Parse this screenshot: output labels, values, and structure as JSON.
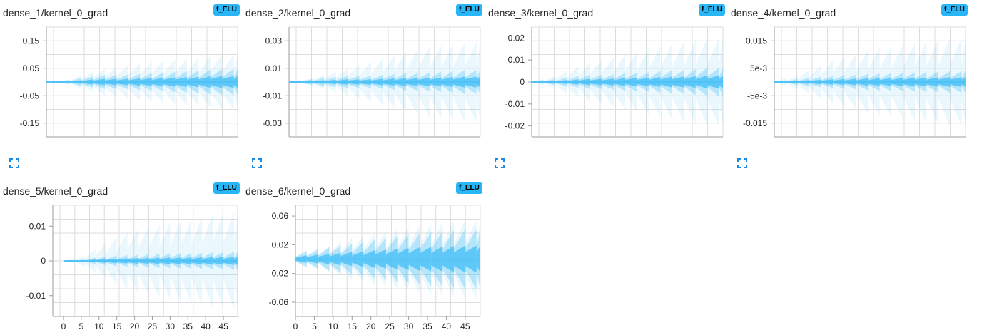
{
  "colors": {
    "accent": "#29b6f6",
    "violin": "#4fc3f7",
    "grid": "#dddddd"
  },
  "icons": {
    "expand": "fullscreen-expand-icon"
  },
  "chart_data": [
    {
      "type": "histogram-offset",
      "title": "dense_1/kernel_0_grad",
      "run": "f_ELU",
      "yticks": [
        0.15,
        0.05,
        -0.05,
        -0.15
      ],
      "ytick_labels": [
        "0.15",
        "0.05",
        "-0.05",
        "-0.15"
      ],
      "ylim": [
        -0.2,
        0.2
      ],
      "xlim": [
        0,
        49
      ],
      "xticks": [],
      "xtick_labels": [],
      "steps": [
        0,
        49
      ],
      "spread": [
        {
          "step": 0,
          "inner": 0.0005,
          "outer": 0.002
        },
        {
          "step": 5,
          "inner": 0.002,
          "outer": 0.006
        },
        {
          "step": 10,
          "inner": 0.008,
          "outer": 0.03
        },
        {
          "step": 15,
          "inner": 0.012,
          "outer": 0.05
        },
        {
          "step": 20,
          "inner": 0.012,
          "outer": 0.06
        },
        {
          "step": 25,
          "inner": 0.014,
          "outer": 0.07
        },
        {
          "step": 30,
          "inner": 0.016,
          "outer": 0.08
        },
        {
          "step": 35,
          "inner": 0.018,
          "outer": 0.085
        },
        {
          "step": 40,
          "inner": 0.02,
          "outer": 0.09
        },
        {
          "step": 45,
          "inner": 0.022,
          "outer": 0.1
        },
        {
          "step": 49,
          "inner": 0.022,
          "outer": 0.1
        }
      ]
    },
    {
      "type": "histogram-offset",
      "title": "dense_2/kernel_0_grad",
      "run": "f_ELU",
      "yticks": [
        0.03,
        0.01,
        -0.01,
        -0.03
      ],
      "ytick_labels": [
        "0.03",
        "0.01",
        "-0.01",
        "-0.03"
      ],
      "ylim": [
        -0.04,
        0.04
      ],
      "xlim": [
        0,
        49
      ],
      "xticks": [],
      "xtick_labels": [],
      "steps": [
        0,
        49
      ],
      "spread": [
        {
          "step": 0,
          "inner": 0.0002,
          "outer": 0.0005
        },
        {
          "step": 5,
          "inner": 0.0008,
          "outer": 0.002
        },
        {
          "step": 10,
          "inner": 0.0015,
          "outer": 0.006
        },
        {
          "step": 15,
          "inner": 0.002,
          "outer": 0.01
        },
        {
          "step": 20,
          "inner": 0.002,
          "outer": 0.014
        },
        {
          "step": 25,
          "inner": 0.0025,
          "outer": 0.018
        },
        {
          "step": 30,
          "inner": 0.003,
          "outer": 0.022
        },
        {
          "step": 35,
          "inner": 0.003,
          "outer": 0.025
        },
        {
          "step": 40,
          "inner": 0.0035,
          "outer": 0.027
        },
        {
          "step": 45,
          "inner": 0.004,
          "outer": 0.029
        },
        {
          "step": 49,
          "inner": 0.004,
          "outer": 0.029
        }
      ]
    },
    {
      "type": "histogram-offset",
      "title": "dense_3/kernel_0_grad",
      "run": "f_ELU",
      "yticks": [
        0.02,
        0.01,
        0,
        -0.01,
        -0.02
      ],
      "ytick_labels": [
        "0.02",
        "0.01",
        "0",
        "-0.01",
        "-0.02"
      ],
      "ylim": [
        -0.025,
        0.025
      ],
      "xlim": [
        0,
        49
      ],
      "xticks": [],
      "xtick_labels": [],
      "steps": [
        0,
        49
      ],
      "spread": [
        {
          "step": 0,
          "inner": 0.0002,
          "outer": 0.0004
        },
        {
          "step": 5,
          "inner": 0.0005,
          "outer": 0.002
        },
        {
          "step": 10,
          "inner": 0.001,
          "outer": 0.006
        },
        {
          "step": 15,
          "inner": 0.0015,
          "outer": 0.009
        },
        {
          "step": 20,
          "inner": 0.0015,
          "outer": 0.011
        },
        {
          "step": 25,
          "inner": 0.002,
          "outer": 0.013
        },
        {
          "step": 30,
          "inner": 0.002,
          "outer": 0.015
        },
        {
          "step": 35,
          "inner": 0.0025,
          "outer": 0.017
        },
        {
          "step": 40,
          "inner": 0.0025,
          "outer": 0.019
        },
        {
          "step": 45,
          "inner": 0.003,
          "outer": 0.02
        },
        {
          "step": 49,
          "inner": 0.003,
          "outer": 0.02
        }
      ]
    },
    {
      "type": "histogram-offset",
      "title": "dense_4/kernel_0_grad",
      "run": "f_ELU",
      "yticks": [
        0.015,
        0.005,
        -0.005,
        -0.015
      ],
      "ytick_labels": [
        "0.015",
        "5e-3",
        "-5e-3",
        "-0.015"
      ],
      "ylim": [
        -0.02,
        0.02
      ],
      "xlim": [
        0,
        49
      ],
      "xticks": [],
      "xtick_labels": [],
      "steps": [
        0,
        49
      ],
      "spread": [
        {
          "step": 0,
          "inner": 0.0001,
          "outer": 0.0003
        },
        {
          "step": 5,
          "inner": 0.0004,
          "outer": 0.002
        },
        {
          "step": 10,
          "inner": 0.0008,
          "outer": 0.005
        },
        {
          "step": 15,
          "inner": 0.001,
          "outer": 0.008
        },
        {
          "step": 20,
          "inner": 0.0012,
          "outer": 0.01
        },
        {
          "step": 25,
          "inner": 0.0014,
          "outer": 0.012
        },
        {
          "step": 30,
          "inner": 0.0015,
          "outer": 0.013
        },
        {
          "step": 35,
          "inner": 0.0016,
          "outer": 0.014
        },
        {
          "step": 40,
          "inner": 0.0017,
          "outer": 0.015
        },
        {
          "step": 45,
          "inner": 0.0018,
          "outer": 0.016
        },
        {
          "step": 49,
          "inner": 0.0018,
          "outer": 0.016
        }
      ]
    },
    {
      "type": "histogram-offset",
      "title": "dense_5/kernel_0_grad",
      "run": "f_ELU",
      "yticks": [
        0.01,
        0,
        -0.01
      ],
      "ytick_labels": [
        "0.01",
        "0",
        "-0.01"
      ],
      "ylim": [
        -0.016,
        0.016
      ],
      "xlim": [
        -3,
        49
      ],
      "xticks": [
        0,
        5,
        10,
        15,
        20,
        25,
        30,
        35,
        40,
        45
      ],
      "xtick_labels": [
        "0",
        "5",
        "10",
        "15",
        "20",
        "25",
        "30",
        "35",
        "40",
        "45"
      ],
      "steps": [
        0,
        49
      ],
      "spread": [
        {
          "step": 0,
          "inner": 5e-05,
          "outer": 0.0001
        },
        {
          "step": 5,
          "inner": 0.0001,
          "outer": 0.001
        },
        {
          "step": 10,
          "inner": 0.0005,
          "outer": 0.004
        },
        {
          "step": 15,
          "inner": 0.0007,
          "outer": 0.007
        },
        {
          "step": 20,
          "inner": 0.0008,
          "outer": 0.009
        },
        {
          "step": 25,
          "inner": 0.0009,
          "outer": 0.01
        },
        {
          "step": 30,
          "inner": 0.001,
          "outer": 0.011
        },
        {
          "step": 35,
          "inner": 0.001,
          "outer": 0.012
        },
        {
          "step": 40,
          "inner": 0.0011,
          "outer": 0.013
        },
        {
          "step": 45,
          "inner": 0.0012,
          "outer": 0.014
        },
        {
          "step": 49,
          "inner": 0.0012,
          "outer": 0.014
        }
      ]
    },
    {
      "type": "histogram-offset",
      "title": "dense_6/kernel_0_grad",
      "run": "f_ELU",
      "yticks": [
        0.06,
        0.02,
        -0.02,
        -0.06
      ],
      "ytick_labels": [
        "0.06",
        "0.02",
        "-0.02",
        "-0.06"
      ],
      "ylim": [
        -0.08,
        0.075
      ],
      "xlim": [
        0,
        49
      ],
      "xticks": [
        0,
        5,
        10,
        15,
        20,
        25,
        30,
        35,
        40,
        45
      ],
      "xtick_labels": [
        "0",
        "5",
        "10",
        "15",
        "20",
        "25",
        "30",
        "35",
        "40",
        "45"
      ],
      "steps": [
        0,
        49
      ],
      "spread": [
        {
          "step": 0,
          "inner": 0.004,
          "outer": 0.006
        },
        {
          "step": 5,
          "inner": 0.006,
          "outer": 0.01
        },
        {
          "step": 10,
          "inner": 0.008,
          "outer": 0.02
        },
        {
          "step": 15,
          "inner": 0.01,
          "outer": 0.03
        },
        {
          "step": 20,
          "inner": 0.012,
          "outer": 0.035
        },
        {
          "step": 25,
          "inner": 0.014,
          "outer": 0.04
        },
        {
          "step": 30,
          "inner": 0.016,
          "outer": 0.045
        },
        {
          "step": 35,
          "inner": 0.017,
          "outer": 0.05
        },
        {
          "step": 40,
          "inner": 0.018,
          "outer": 0.052
        },
        {
          "step": 45,
          "inner": 0.019,
          "outer": 0.055
        },
        {
          "step": 49,
          "inner": 0.019,
          "outer": 0.055
        }
      ]
    }
  ]
}
